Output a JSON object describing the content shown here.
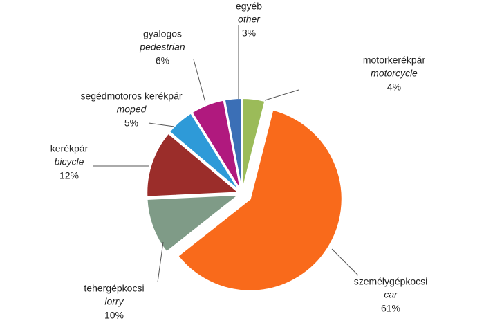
{
  "chart_data": {
    "type": "pie",
    "categories": [
      "motorkerékpár",
      "személygépkocsi",
      "tehergépkocsi",
      "kerékpár",
      "segédmotoros kerékpár",
      "gyalogos",
      "egyéb"
    ],
    "translations": [
      "motorcycle",
      "car",
      "lorry",
      "bicycle",
      "moped",
      "pedestrian",
      "other"
    ],
    "values": [
      4,
      61,
      10,
      12,
      5,
      6,
      3
    ],
    "value_labels": [
      "4%",
      "61%",
      "10%",
      "12%",
      "5%",
      "6%",
      "3%"
    ],
    "colors": [
      "#9bbb59",
      "#f96a1b",
      "#7f9b87",
      "#9b2d2a",
      "#2e9ad8",
      "#b0197e",
      "#3b6fb6"
    ]
  }
}
